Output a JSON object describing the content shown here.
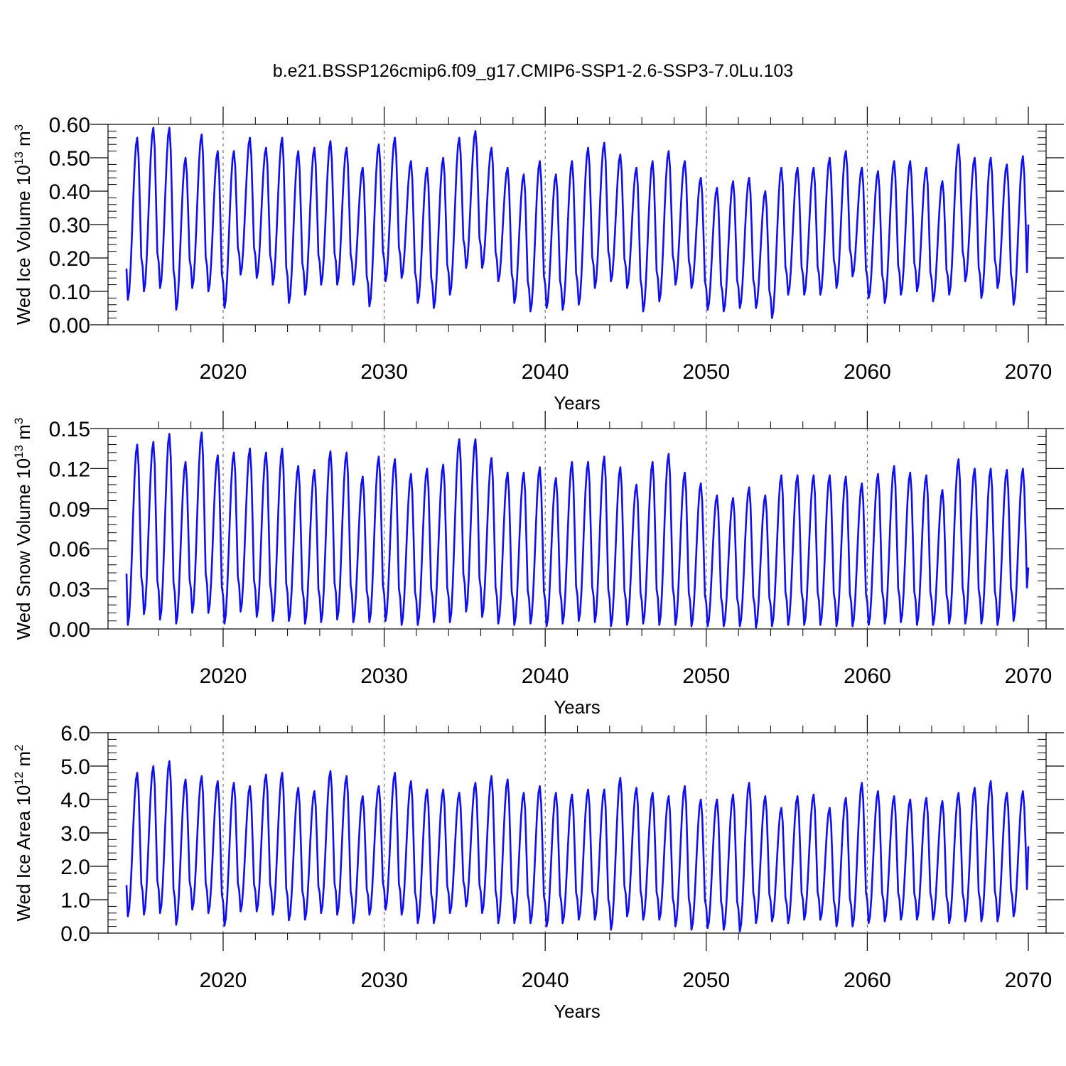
{
  "title": "b.e21.BSSP126cmip6.f09_g17.CMIP6-SSP1-2.6-SSP3-7.0Lu.103",
  "colors": {
    "line": "#1010ee",
    "axis": "#000000",
    "grid": "#555555"
  },
  "chart_data": [
    {
      "type": "line",
      "ylabel_main": "Wed Ice Volume 10",
      "ylabel_sup1": "13",
      "ylabel_mid": " m",
      "ylabel_sup2": "3",
      "xlabel": "Years",
      "xlim": [
        2014,
        2070
      ],
      "ylim": [
        0,
        0.6
      ],
      "xticks": [
        2020,
        2030,
        2040,
        2050,
        2060,
        2070
      ],
      "yticks": [
        "0.00",
        "0.10",
        "0.20",
        "0.30",
        "0.40",
        "0.50",
        "0.60"
      ],
      "ytick_values": [
        0,
        0.1,
        0.2,
        0.3,
        0.4,
        0.5,
        0.6
      ],
      "grid": "vertical dashed at decades",
      "series": [
        {
          "x_start": 2014.0,
          "x_end": 2070.0,
          "annual_min": [
            0.075,
            0.1,
            0.11,
            0.045,
            0.11,
            0.1,
            0.05,
            0.15,
            0.14,
            0.12,
            0.065,
            0.09,
            0.12,
            0.12,
            0.12,
            0.055,
            0.13,
            0.14,
            0.065,
            0.05,
            0.09,
            0.17,
            0.17,
            0.13,
            0.065,
            0.04,
            0.05,
            0.045,
            0.06,
            0.11,
            0.13,
            0.11,
            0.04,
            0.07,
            0.12,
            0.11,
            0.045,
            0.04,
            0.05,
            0.05,
            0.02,
            0.09,
            0.09,
            0.09,
            0.11,
            0.145,
            0.08,
            0.065,
            0.09,
            0.1,
            0.07,
            0.09,
            0.13,
            0.08,
            0.11,
            0.06
          ],
          "annual_max": [
            0.56,
            0.59,
            0.59,
            0.5,
            0.57,
            0.52,
            0.52,
            0.56,
            0.53,
            0.56,
            0.52,
            0.53,
            0.55,
            0.53,
            0.47,
            0.54,
            0.56,
            0.49,
            0.47,
            0.5,
            0.56,
            0.58,
            0.53,
            0.47,
            0.45,
            0.49,
            0.45,
            0.49,
            0.53,
            0.545,
            0.51,
            0.47,
            0.49,
            0.52,
            0.49,
            0.44,
            0.41,
            0.43,
            0.44,
            0.4,
            0.47,
            0.47,
            0.47,
            0.5,
            0.52,
            0.47,
            0.46,
            0.49,
            0.49,
            0.47,
            0.43,
            0.54,
            0.5,
            0.5,
            0.48,
            0.505
          ],
          "end_value": 0.3
        }
      ]
    },
    {
      "type": "line",
      "ylabel_main": "Wed Snow Volume 10",
      "ylabel_sup1": "13",
      "ylabel_mid": " m",
      "ylabel_sup2": "3",
      "xlabel": "Years",
      "xlim": [
        2014,
        2070
      ],
      "ylim": [
        0,
        0.15
      ],
      "xticks": [
        2020,
        2030,
        2040,
        2050,
        2060,
        2070
      ],
      "yticks": [
        "0.00",
        "0.03",
        "0.06",
        "0.09",
        "0.12",
        "0.15"
      ],
      "ytick_values": [
        0,
        0.03,
        0.06,
        0.09,
        0.12,
        0.15
      ],
      "grid": "vertical dashed at decades",
      "series": [
        {
          "x_start": 2014.0,
          "x_end": 2070.0,
          "annual_min": [
            0.003,
            0.011,
            0.007,
            0.004,
            0.012,
            0.012,
            0.004,
            0.013,
            0.009,
            0.006,
            0.006,
            0.004,
            0.005,
            0.007,
            0.005,
            0.005,
            0.006,
            0.003,
            0.003,
            0.005,
            0.005,
            0.013,
            0.009,
            0.004,
            0.003,
            0.004,
            0.002,
            0.004,
            0.006,
            0.005,
            0.002,
            0.003,
            0.004,
            0.003,
            0.003,
            0.002,
            0.002,
            0.002,
            0.002,
            0.001,
            0.002,
            0.003,
            0.003,
            0.003,
            0.002,
            0.002,
            0.003,
            0.004,
            0.005,
            0.003,
            0.003,
            0.004,
            0.004,
            0.004,
            0.003,
            0.006
          ],
          "annual_max": [
            0.138,
            0.14,
            0.146,
            0.125,
            0.147,
            0.13,
            0.132,
            0.135,
            0.132,
            0.135,
            0.122,
            0.119,
            0.133,
            0.132,
            0.114,
            0.129,
            0.127,
            0.116,
            0.12,
            0.123,
            0.142,
            0.142,
            0.128,
            0.117,
            0.117,
            0.121,
            0.113,
            0.125,
            0.125,
            0.129,
            0.121,
            0.108,
            0.125,
            0.131,
            0.117,
            0.109,
            0.1,
            0.098,
            0.106,
            0.1,
            0.115,
            0.115,
            0.115,
            0.115,
            0.114,
            0.109,
            0.116,
            0.122,
            0.117,
            0.115,
            0.104,
            0.127,
            0.12,
            0.12,
            0.119,
            0.12
          ],
          "end_value": 0.046
        }
      ]
    },
    {
      "type": "line",
      "ylabel_main": "Wed Ice Area 10",
      "ylabel_sup1": "12",
      "ylabel_mid": " m",
      "ylabel_sup2": "2",
      "xlabel": "Years",
      "xlim": [
        2014,
        2070
      ],
      "ylim": [
        0,
        6
      ],
      "xticks": [
        2020,
        2030,
        2040,
        2050,
        2060,
        2070
      ],
      "yticks": [
        "0.0",
        "1.0",
        "2.0",
        "3.0",
        "4.0",
        "5.0",
        "6.0"
      ],
      "ytick_values": [
        0,
        1,
        2,
        3,
        4,
        5,
        6
      ],
      "grid": "vertical dashed at decades",
      "series": [
        {
          "x_start": 2014.0,
          "x_end": 2070.0,
          "annual_min": [
            0.5,
            0.55,
            0.6,
            0.25,
            0.7,
            0.6,
            0.22,
            0.65,
            0.65,
            0.55,
            0.38,
            0.4,
            0.6,
            0.55,
            0.3,
            0.55,
            0.7,
            0.55,
            0.3,
            0.3,
            0.6,
            0.8,
            0.6,
            0.3,
            0.3,
            0.3,
            0.2,
            0.3,
            0.4,
            0.4,
            0.1,
            0.5,
            0.4,
            0.4,
            0.2,
            0.1,
            0.15,
            0.1,
            0.05,
            0.3,
            0.35,
            0.3,
            0.4,
            0.4,
            0.2,
            0.2,
            0.3,
            0.35,
            0.4,
            0.4,
            0.4,
            0.3,
            0.35,
            0.35,
            0.35,
            0.5
          ],
          "annual_max": [
            4.8,
            5.0,
            5.15,
            4.6,
            4.7,
            4.55,
            4.5,
            4.4,
            4.75,
            4.8,
            4.35,
            4.25,
            4.85,
            4.7,
            4.1,
            4.4,
            4.8,
            4.55,
            4.3,
            4.3,
            4.2,
            4.5,
            4.7,
            4.6,
            4.2,
            4.4,
            4.2,
            4.15,
            4.3,
            4.3,
            4.65,
            4.35,
            4.2,
            4.1,
            4.4,
            4.0,
            4.0,
            4.15,
            4.5,
            4.1,
            3.75,
            4.1,
            4.15,
            3.75,
            4.05,
            4.5,
            4.25,
            4.1,
            4.0,
            4.05,
            3.95,
            4.2,
            4.35,
            4.55,
            4.2,
            4.25
          ],
          "end_value": 2.6
        }
      ]
    }
  ]
}
